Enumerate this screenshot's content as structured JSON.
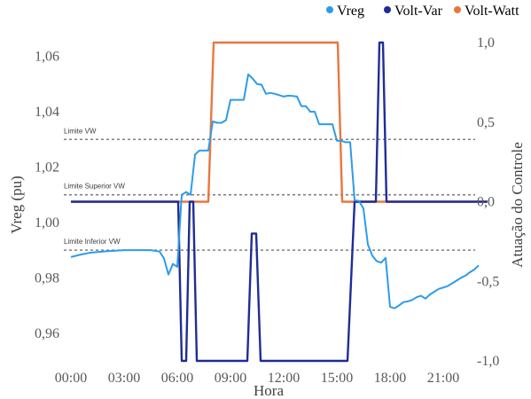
{
  "chart_data": {
    "type": "line",
    "xlabel": "Hora",
    "ylabel": "Vreg (pu)",
    "y2label": "Atuação do Controle",
    "xlim": [
      0,
      24
    ],
    "ylim": [
      0.95,
      1.065
    ],
    "y2lim": [
      -1.0,
      1.0
    ],
    "x_ticks": [
      {
        "value": 0,
        "label": "00:00"
      },
      {
        "value": 3,
        "label": "03:00"
      },
      {
        "value": 6,
        "label": "06:00"
      },
      {
        "value": 9,
        "label": "09:00"
      },
      {
        "value": 12,
        "label": "12:00"
      },
      {
        "value": 15,
        "label": "15:00"
      },
      {
        "value": 18,
        "label": "18:00"
      },
      {
        "value": 21,
        "label": "21:00"
      }
    ],
    "y_ticks": [
      {
        "value": 0.96,
        "label": "0,96"
      },
      {
        "value": 0.98,
        "label": "0,98"
      },
      {
        "value": 1.0,
        "label": "1,00"
      },
      {
        "value": 1.02,
        "label": "1,02"
      },
      {
        "value": 1.04,
        "label": "1,04"
      },
      {
        "value": 1.06,
        "label": "1,06"
      }
    ],
    "y2_ticks": [
      {
        "value": 1.0,
        "label": "1,0"
      },
      {
        "value": 0.5,
        "label": "0,5"
      },
      {
        "value": 0.0,
        "label": "0,0"
      },
      {
        "value": -0.5,
        "label": "-0,5"
      },
      {
        "value": -1.0,
        "label": "-1,0"
      }
    ],
    "legend_position": "top-right",
    "reference_lines": [
      {
        "label": "Limite VW",
        "y": 1.03
      },
      {
        "label": "Limite Superior VW",
        "y": 1.01
      },
      {
        "label": "Limite Inferior VW",
        "y": 0.99
      }
    ],
    "series": [
      {
        "name": "Vreg",
        "axis": "left",
        "color": "#2E9BEA",
        "x": [
          0,
          0.5,
          1,
          1.5,
          2,
          2.5,
          3,
          3.5,
          4,
          4.5,
          5,
          5.25,
          5.5,
          5.75,
          6,
          6.25,
          6.5,
          6.75,
          7,
          7.25,
          7.5,
          7.75,
          8,
          8.25,
          8.5,
          8.75,
          9,
          9.25,
          9.5,
          9.75,
          10,
          10.25,
          10.5,
          10.75,
          11,
          11.25,
          11.5,
          11.75,
          12,
          12.25,
          12.5,
          12.75,
          13,
          13.25,
          13.5,
          13.75,
          14,
          14.25,
          14.5,
          14.75,
          15,
          15.25,
          15.5,
          15.75,
          16,
          16.25,
          16.5,
          16.75,
          17,
          17.25,
          17.5,
          17.75,
          18,
          18.25,
          18.5,
          18.75,
          19,
          19.25,
          19.5,
          19.75,
          20,
          20.25,
          20.5,
          20.75,
          21,
          21.25,
          21.5,
          21.75,
          22,
          22.25,
          22.5,
          22.75,
          23
        ],
        "values": [
          0.9875,
          0.9883,
          0.989,
          0.9893,
          0.9896,
          0.9898,
          0.99,
          0.99,
          0.99,
          0.99,
          0.9895,
          0.987,
          0.9812,
          0.985,
          0.984,
          1.01,
          1.011,
          1.01,
          1.0245,
          1.026,
          1.026,
          1.026,
          1.0365,
          1.036,
          1.036,
          1.037,
          1.0443,
          1.0443,
          1.0443,
          1.0443,
          1.0535,
          1.052,
          1.05,
          1.0498,
          1.0465,
          1.0468,
          1.0465,
          1.046,
          1.0455,
          1.0458,
          1.0457,
          1.0455,
          1.042,
          1.042,
          1.04,
          1.04,
          1.0355,
          1.0355,
          1.0355,
          1.0355,
          1.0295,
          1.0295,
          1.029,
          1.029,
          1.008,
          1.0078,
          1.005,
          0.992,
          0.988,
          0.986,
          0.9855,
          0.9872,
          0.9695,
          0.969,
          0.97,
          0.9712,
          0.9715,
          0.972,
          0.973,
          0.9735,
          0.9725,
          0.974,
          0.975,
          0.976,
          0.9765,
          0.977,
          0.978,
          0.979,
          0.98,
          0.9808,
          0.982,
          0.983,
          0.9845
        ]
      },
      {
        "name": "Volt-Var",
        "axis": "right",
        "color": "#1F2D96",
        "x": [
          0,
          6.05,
          6.25,
          6.5,
          6.7,
          6.9,
          7.1,
          7.2,
          7.3,
          9.95,
          10.2,
          10.45,
          10.7,
          15.6,
          16.0,
          16.2,
          16.6,
          17.2,
          17.4,
          17.6,
          17.8,
          18.0,
          23.5
        ],
        "values": [
          0.0,
          0.0,
          -1.0,
          -1.0,
          0.0,
          0.0,
          -1.0,
          -1.0,
          -1.0,
          -1.0,
          -0.2,
          -0.2,
          -1.0,
          -1.0,
          0.0,
          0.0,
          0.0,
          0.0,
          1.0,
          1.0,
          0.0,
          0.0,
          0.0
        ]
      },
      {
        "name": "Volt-Watt",
        "axis": "right",
        "color": "#E8773F",
        "x": [
          0,
          7.75,
          8.05,
          15.05,
          15.3,
          23.5
        ],
        "values": [
          0.0,
          0.0,
          1.0,
          1.0,
          0.0,
          0.0
        ]
      }
    ]
  }
}
